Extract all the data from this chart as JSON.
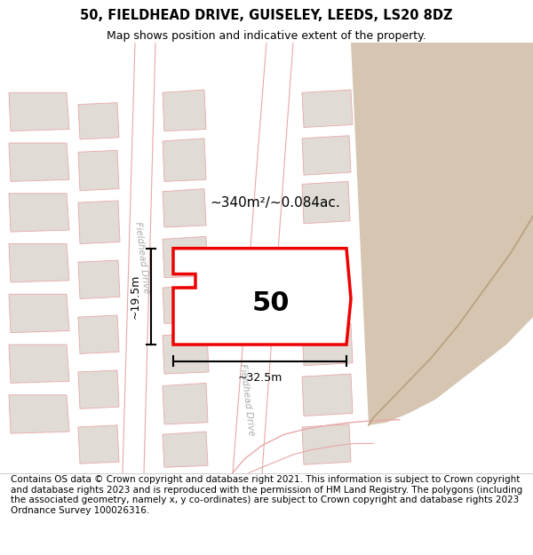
{
  "title": "50, FIELDHEAD DRIVE, GUISELEY, LEEDS, LS20 8DZ",
  "subtitle": "Map shows position and indicative extent of the property.",
  "footer": "Contains OS data © Crown copyright and database right 2021. This information is subject to Crown copyright and database rights 2023 and is reproduced with the permission of HM Land Registry. The polygons (including the associated geometry, namely x, y co-ordinates) are subject to Crown copyright and database rights 2023 Ordnance Survey 100026316.",
  "map_bg": "#f2ede8",
  "road_bg": "#ffffff",
  "block_bg": "#e0dbd5",
  "tan_area": "#d6c5b0",
  "road_line_color": "#e8a8a8",
  "highlight_color": "#ee0000",
  "highlight_fill": "#ffffff",
  "dim_color": "#1a1a1a",
  "area_text": "~340m²/~0.084ac.",
  "number_text": "50",
  "dim_width": "~32.5m",
  "dim_height": "~19.5m",
  "road_label1": "Fieldhead Drive",
  "road_label2": "Fieldhead Drive",
  "title_fontsize": 10.5,
  "subtitle_fontsize": 9,
  "footer_fontsize": 7.5
}
